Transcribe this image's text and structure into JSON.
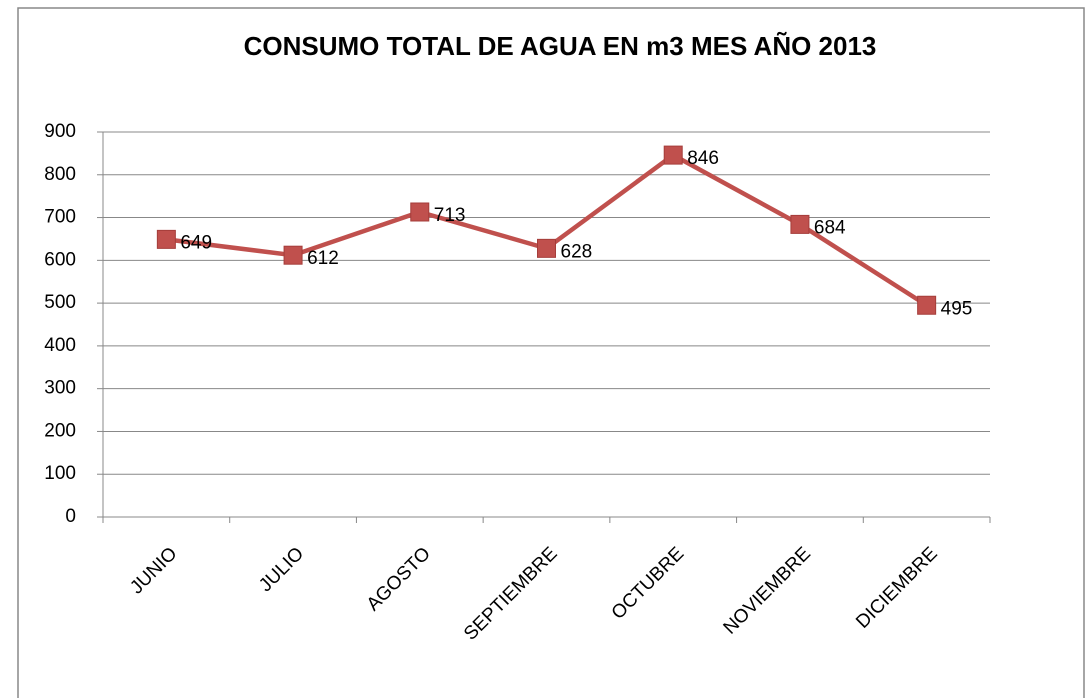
{
  "chart_data": {
    "type": "line",
    "title": "CONSUMO TOTAL DE AGUA EN m3 MES AÑO 2013",
    "categories": [
      "JUNIO",
      "JULIO",
      "AGOSTO",
      "SEPTIEMBRE",
      "OCTUBRE",
      "NOVIEMBRE",
      "DICIEMBRE"
    ],
    "values": [
      649,
      612,
      713,
      628,
      846,
      684,
      495
    ],
    "color": "#c0504d",
    "ylim": [
      0,
      900
    ],
    "yticks": [
      0,
      100,
      200,
      300,
      400,
      500,
      600,
      700,
      800,
      900
    ],
    "grid": true
  }
}
